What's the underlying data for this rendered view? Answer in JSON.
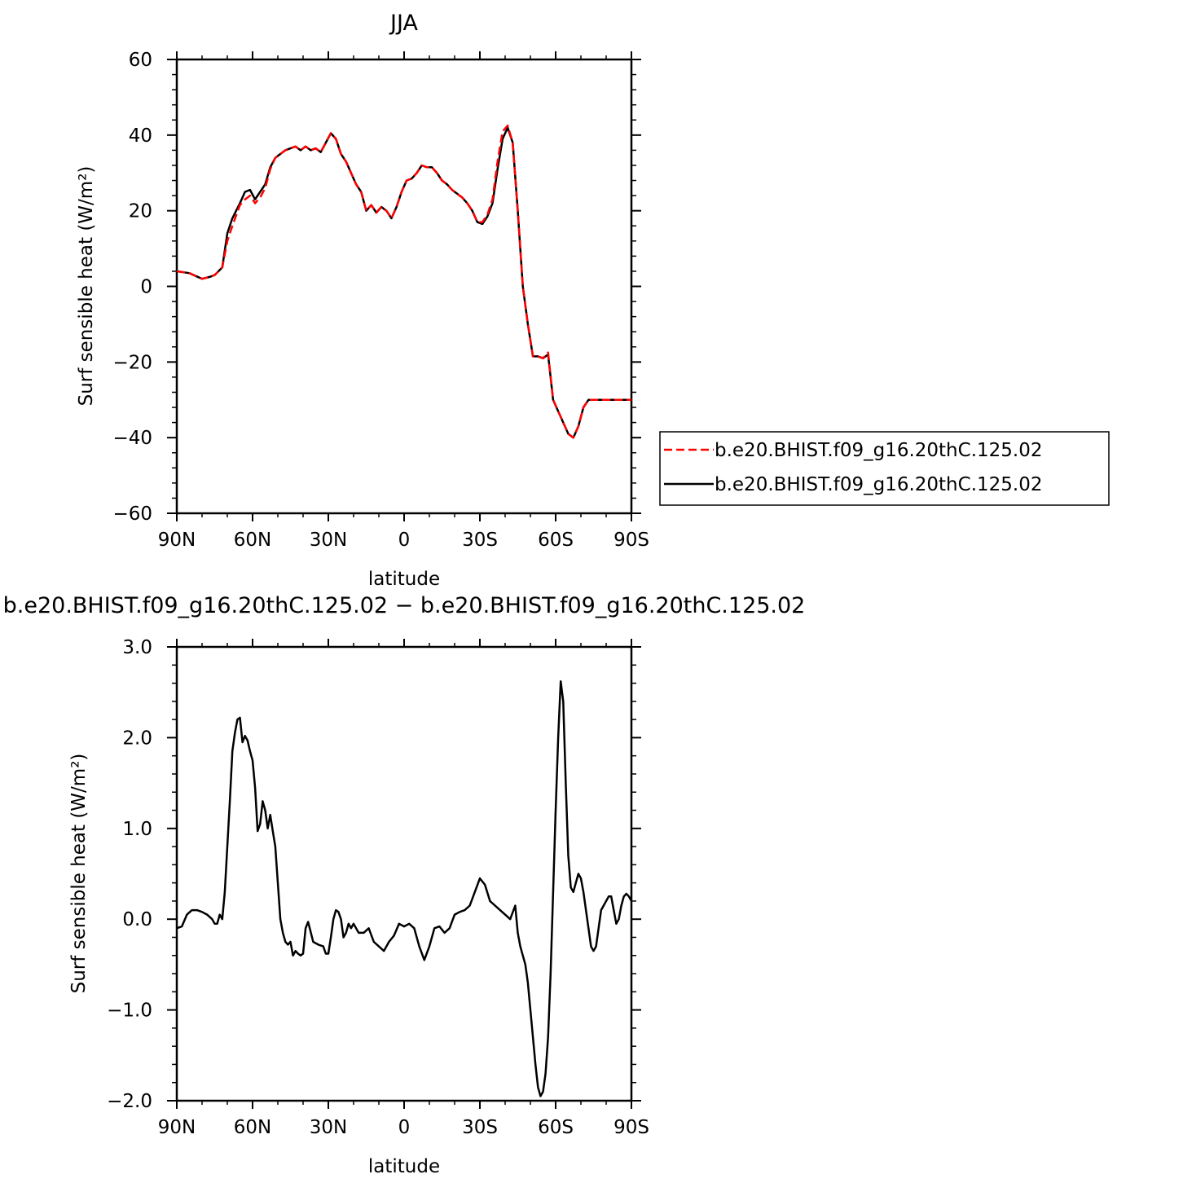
{
  "chart_data": [
    {
      "type": "line",
      "title": "JJA",
      "xlabel": "latitude",
      "ylabel": "Surf sensible heat (W/m²)",
      "xlim": [
        90,
        -90
      ],
      "ylim": [
        -60,
        60
      ],
      "xticks": [
        90,
        60,
        30,
        0,
        -30,
        -60,
        -90
      ],
      "xtick_labels": [
        "90N",
        "60N",
        "30N",
        "0",
        "30S",
        "60S",
        "90S"
      ],
      "yticks": [
        -60,
        -40,
        -20,
        0,
        20,
        40,
        60
      ],
      "ytick_labels": [
        "−60",
        "−40",
        "−20",
        "0",
        "20",
        "40",
        "60"
      ],
      "legend_position": "right",
      "series": [
        {
          "name": "b.e20.BHIST.f09_g16.20thC.125.02",
          "color": "#ff0000",
          "dash": "dashed",
          "x": [
            90,
            85,
            80,
            77,
            75,
            72,
            70,
            68,
            65,
            63,
            61,
            59,
            57,
            55,
            53,
            51,
            49,
            47,
            45,
            43,
            41,
            39,
            37,
            35,
            33,
            31,
            29,
            27,
            25,
            23,
            21,
            19,
            17,
            15,
            13,
            11,
            9,
            7,
            5,
            3,
            1,
            -1,
            -3,
            -5,
            -7,
            -9,
            -11,
            -13,
            -15,
            -17,
            -19,
            -21,
            -23,
            -25,
            -27,
            -29,
            -31,
            -33,
            -35,
            -37,
            -39,
            -41,
            -43,
            -45,
            -47,
            -49,
            -51,
            -53,
            -55,
            -57,
            -59,
            -61,
            -63,
            -65,
            -67,
            -69,
            -71,
            -73,
            -75,
            -77,
            -78,
            -79,
            -81,
            -83,
            -85,
            -87,
            -89,
            -90
          ],
          "y": [
            4,
            3.5,
            2,
            2.5,
            3,
            5,
            12,
            16,
            21.5,
            23,
            24,
            22,
            23.5,
            26,
            31,
            34,
            35,
            36,
            36.5,
            37,
            36,
            37,
            36,
            36.5,
            35.5,
            38,
            40.5,
            39,
            35,
            33,
            30,
            27,
            25,
            20,
            21.5,
            19.5,
            21,
            20,
            18,
            21,
            25,
            28,
            28.5,
            30,
            32,
            31.5,
            31.5,
            30,
            28,
            27,
            25.5,
            24.5,
            23.5,
            22,
            20,
            17,
            17,
            19,
            23,
            33,
            41,
            42.5,
            38,
            20,
            0,
            -10,
            -18.5,
            -18.5,
            -19,
            -17.5,
            -30,
            -33,
            -36,
            -39,
            -40,
            -37,
            -32,
            -30,
            -30,
            -30,
            -30,
            -30,
            -30,
            -30,
            -30,
            -30,
            -30,
            -30
          ],
          "dash_note": ""
        },
        {
          "name": "b.e20.BHIST.f09_g16.20thC.125.02",
          "color": "#000000",
          "dash": "solid",
          "x": [
            90,
            85,
            80,
            77,
            75,
            72,
            70,
            68,
            65,
            63,
            61,
            59,
            57,
            55,
            53,
            51,
            49,
            47,
            45,
            43,
            41,
            39,
            37,
            35,
            33,
            31,
            29,
            27,
            25,
            23,
            21,
            19,
            17,
            15,
            13,
            11,
            9,
            7,
            5,
            3,
            1,
            -1,
            -3,
            -5,
            -7,
            -9,
            -11,
            -13,
            -15,
            -17,
            -19,
            -21,
            -23,
            -25,
            -27,
            -29,
            -31,
            -33,
            -35,
            -37,
            -39,
            -41,
            -43,
            -45,
            -47,
            -49,
            -51,
            -53,
            -55,
            -57,
            -59,
            -61,
            -63,
            -65,
            -67,
            -69,
            -71,
            -73,
            -75,
            -77,
            -78,
            -79,
            -81,
            -83,
            -85,
            -87,
            -89,
            -90
          ],
          "y": [
            4,
            3.5,
            2,
            2.5,
            3,
            5,
            14,
            18,
            22,
            25,
            25.5,
            23,
            25,
            27,
            31.5,
            34,
            35,
            36,
            36.5,
            37,
            36,
            37,
            36,
            36.5,
            35.5,
            38,
            40.5,
            39,
            35,
            33,
            30,
            27,
            25,
            20,
            21.5,
            19.5,
            21,
            20,
            18,
            21,
            25,
            28,
            28.5,
            30,
            32,
            31.5,
            31.5,
            30,
            28,
            27,
            25.5,
            24.5,
            23.5,
            22,
            20,
            17,
            16.5,
            18.5,
            22,
            31,
            39,
            42,
            38,
            20,
            0,
            -10,
            -18.5,
            -18.5,
            -19,
            -18,
            -30,
            -33,
            -36,
            -39,
            -40,
            -37,
            -32,
            -30,
            -30,
            -30,
            -30,
            -30,
            -30,
            -30,
            -30,
            -30,
            -30,
            -30
          ],
          "dash_note": ""
        }
      ]
    },
    {
      "type": "line",
      "title": "b.e20.BHIST.f09_g16.20thC.125.02 − b.e20.BHIST.f09_g16.20thC.125.02",
      "xlabel": "latitude",
      "ylabel": "Surf sensible heat (W/m²)",
      "xlim": [
        90,
        -90
      ],
      "ylim": [
        -2.0,
        3.0
      ],
      "xticks": [
        90,
        60,
        30,
        0,
        -30,
        -60,
        -90
      ],
      "xtick_labels": [
        "90N",
        "60N",
        "30N",
        "0",
        "30S",
        "60S",
        "90S"
      ],
      "yticks": [
        -2.0,
        -1.0,
        0.0,
        1.0,
        2.0,
        3.0
      ],
      "ytick_labels": [
        "−2.0",
        "−1.0",
        "0.0",
        "1.0",
        "2.0",
        "3.0"
      ],
      "series": [
        {
          "name": "",
          "color": "#000000",
          "dash": "solid",
          "x": [
            90,
            88,
            86,
            84,
            82,
            80,
            78,
            76,
            75,
            74,
            73,
            72,
            71,
            70,
            69,
            68,
            67,
            66,
            65,
            64,
            63,
            62,
            61,
            60,
            59,
            58,
            57,
            56,
            55,
            54,
            53,
            52,
            51,
            50,
            49,
            48,
            47,
            46,
            45,
            44,
            43,
            42,
            41,
            40,
            39,
            38,
            36,
            34,
            32,
            31,
            30,
            29,
            28,
            27,
            26,
            25,
            24,
            23,
            22,
            21,
            20,
            18,
            16,
            14,
            12,
            10,
            8,
            6,
            4,
            2,
            0,
            -2,
            -4,
            -6,
            -8,
            -10,
            -12,
            -14,
            -16,
            -18,
            -20,
            -22,
            -24,
            -26,
            -28,
            -30,
            -32,
            -34,
            -36,
            -38,
            -40,
            -42,
            -44,
            -45,
            -46,
            -47,
            -48,
            -49,
            -50,
            -51,
            -52,
            -53,
            -54,
            -55,
            -56,
            -57,
            -58,
            -59,
            -60,
            -61,
            -62,
            -63,
            -64,
            -65,
            -66,
            -67,
            -68,
            -69,
            -70,
            -71,
            -72,
            -73,
            -74,
            -75,
            -76,
            -77,
            -78,
            -79,
            -80,
            -81,
            -82,
            -83,
            -84,
            -85,
            -86,
            -87,
            -88,
            -89,
            -90
          ],
          "y": [
            -0.1,
            -0.08,
            0.05,
            0.1,
            0.1,
            0.08,
            0.05,
            0.0,
            -0.05,
            -0.05,
            0.05,
            0.0,
            0.3,
            0.8,
            1.3,
            1.85,
            2.05,
            2.2,
            2.22,
            1.95,
            2.02,
            1.97,
            1.85,
            1.75,
            1.45,
            0.97,
            1.05,
            1.3,
            1.2,
            1.0,
            1.15,
            0.97,
            0.8,
            0.4,
            0.0,
            -0.15,
            -0.25,
            -0.28,
            -0.25,
            -0.4,
            -0.35,
            -0.38,
            -0.4,
            -0.38,
            -0.1,
            -0.03,
            -0.25,
            -0.28,
            -0.3,
            -0.38,
            -0.38,
            -0.2,
            0.0,
            0.1,
            0.08,
            0.0,
            -0.2,
            -0.15,
            -0.05,
            -0.1,
            -0.05,
            -0.15,
            -0.15,
            -0.1,
            -0.25,
            -0.3,
            -0.35,
            -0.25,
            -0.18,
            -0.05,
            -0.08,
            -0.05,
            -0.1,
            -0.3,
            -0.45,
            -0.3,
            -0.1,
            -0.08,
            -0.15,
            -0.1,
            0.05,
            0.08,
            0.1,
            0.15,
            0.3,
            0.45,
            0.38,
            0.2,
            0.15,
            0.1,
            0.05,
            0.0,
            0.15,
            -0.15,
            -0.3,
            -0.4,
            -0.5,
            -0.7,
            -1.0,
            -1.3,
            -1.6,
            -1.85,
            -1.95,
            -1.9,
            -1.7,
            -1.3,
            -0.6,
            0.3,
            1.2,
            2.0,
            2.62,
            2.4,
            1.5,
            0.7,
            0.35,
            0.3,
            0.4,
            0.5,
            0.45,
            0.3,
            0.1,
            -0.1,
            -0.3,
            -0.35,
            -0.3,
            -0.1,
            0.1,
            0.15,
            0.2,
            0.25,
            0.25,
            0.1,
            -0.05,
            0.0,
            0.15,
            0.25,
            0.28,
            0.25,
            0.2
          ],
          "dash_note": ""
        }
      ]
    }
  ]
}
